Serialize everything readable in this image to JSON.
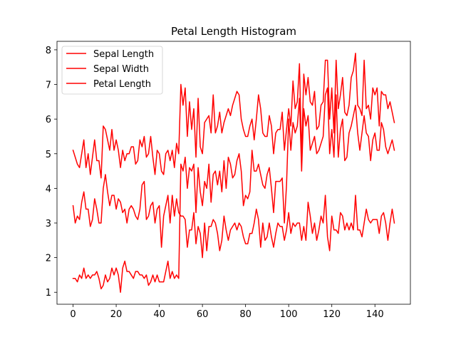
{
  "chart_data": {
    "type": "line",
    "title": "Petal Length Histogram",
    "xlabel": "",
    "ylabel": "",
    "xlim": [
      -7.45,
      156.45
    ],
    "ylim": [
      0.655,
      8.245
    ],
    "xticks": [
      0,
      20,
      40,
      60,
      80,
      100,
      120,
      140
    ],
    "yticks": [
      1,
      2,
      3,
      4,
      5,
      6,
      7,
      8
    ],
    "grid": false,
    "legend_position": "top-left",
    "series": [
      {
        "name": "Sepal Length",
        "color": "#ff0000",
        "values": [
          5.1,
          4.9,
          4.7,
          4.6,
          5.0,
          5.4,
          4.6,
          5.0,
          4.4,
          4.9,
          5.4,
          4.8,
          4.8,
          4.3,
          5.8,
          5.7,
          5.4,
          5.1,
          5.7,
          5.1,
          5.4,
          5.1,
          4.6,
          5.1,
          4.8,
          5.0,
          5.0,
          5.2,
          5.2,
          4.7,
          4.8,
          5.4,
          5.2,
          5.5,
          4.9,
          5.0,
          5.5,
          4.9,
          4.4,
          5.1,
          5.0,
          4.5,
          4.4,
          5.0,
          5.1,
          4.8,
          5.1,
          4.6,
          5.3,
          5.0,
          7.0,
          6.4,
          6.9,
          5.5,
          6.5,
          5.7,
          6.3,
          4.9,
          6.6,
          5.2,
          5.0,
          5.9,
          6.0,
          6.1,
          5.6,
          6.7,
          5.6,
          5.8,
          6.2,
          5.6,
          5.9,
          6.1,
          6.3,
          6.1,
          6.4,
          6.6,
          6.8,
          6.7,
          6.0,
          5.7,
          5.5,
          5.5,
          5.8,
          6.0,
          5.4,
          6.0,
          6.7,
          6.3,
          5.6,
          5.5,
          5.5,
          6.1,
          5.8,
          5.0,
          5.6,
          5.7,
          5.7,
          6.2,
          5.1,
          5.7,
          6.3,
          5.8,
          7.1,
          6.3,
          6.5,
          7.6,
          4.9,
          7.3,
          6.7,
          7.2,
          6.5,
          6.4,
          6.8,
          5.7,
          5.8,
          6.4,
          6.5,
          7.7,
          7.7,
          6.0,
          6.9,
          5.6,
          7.7,
          6.3,
          6.7,
          7.2,
          6.2,
          6.1,
          6.4,
          7.2,
          7.4,
          7.9,
          6.4,
          6.3,
          6.1,
          7.7,
          6.3,
          6.4,
          6.0,
          6.9,
          6.7,
          6.9,
          5.8,
          6.8,
          6.7,
          6.7,
          6.3,
          6.5,
          6.2,
          5.9
        ]
      },
      {
        "name": "Sepal Width",
        "color": "#ff0000",
        "values": [
          3.5,
          3.0,
          3.2,
          3.1,
          3.6,
          3.9,
          3.4,
          3.4,
          2.9,
          3.1,
          3.7,
          3.4,
          3.0,
          3.0,
          4.0,
          4.4,
          3.9,
          3.5,
          3.8,
          3.8,
          3.4,
          3.7,
          3.6,
          3.3,
          3.4,
          3.0,
          3.4,
          3.5,
          3.4,
          3.2,
          3.1,
          3.4,
          4.1,
          4.2,
          3.1,
          3.2,
          3.5,
          3.6,
          3.0,
          3.4,
          3.5,
          2.3,
          3.2,
          3.5,
          3.8,
          3.0,
          3.8,
          3.2,
          3.7,
          3.3,
          3.2,
          3.2,
          3.1,
          2.3,
          2.8,
          2.8,
          3.3,
          2.4,
          2.9,
          2.7,
          2.0,
          3.0,
          2.2,
          2.9,
          2.9,
          3.1,
          3.0,
          2.7,
          2.2,
          2.5,
          3.2,
          2.8,
          2.5,
          2.8,
          2.9,
          3.0,
          2.8,
          3.0,
          2.9,
          2.6,
          2.4,
          2.4,
          2.7,
          2.7,
          3.0,
          3.4,
          3.1,
          2.3,
          3.0,
          2.5,
          2.6,
          3.0,
          2.6,
          2.3,
          2.7,
          3.0,
          2.9,
          2.9,
          2.5,
          2.8,
          3.3,
          2.7,
          3.0,
          2.9,
          3.0,
          3.0,
          2.5,
          2.9,
          2.5,
          3.6,
          3.2,
          2.7,
          3.0,
          2.5,
          2.8,
          3.2,
          3.0,
          3.8,
          2.6,
          2.2,
          3.2,
          2.8,
          2.8,
          2.7,
          3.3,
          3.2,
          2.8,
          3.0,
          2.8,
          3.0,
          2.8,
          3.8,
          2.8,
          2.8,
          2.6,
          3.0,
          3.4,
          3.1,
          3.0,
          3.1,
          3.1,
          3.1,
          2.7,
          3.2,
          3.3,
          3.0,
          2.5,
          3.0,
          3.4,
          3.0
        ]
      },
      {
        "name": "Petal Length",
        "color": "#ff0000",
        "values": [
          1.4,
          1.4,
          1.3,
          1.5,
          1.4,
          1.7,
          1.4,
          1.5,
          1.4,
          1.5,
          1.5,
          1.6,
          1.4,
          1.1,
          1.2,
          1.5,
          1.3,
          1.4,
          1.7,
          1.5,
          1.7,
          1.5,
          1.0,
          1.7,
          1.9,
          1.6,
          1.6,
          1.5,
          1.4,
          1.6,
          1.6,
          1.5,
          1.5,
          1.4,
          1.5,
          1.2,
          1.3,
          1.5,
          1.3,
          1.5,
          1.3,
          1.3,
          1.3,
          1.6,
          1.9,
          1.4,
          1.6,
          1.4,
          1.5,
          1.4,
          4.7,
          4.5,
          4.9,
          4.0,
          4.6,
          4.5,
          4.7,
          3.3,
          4.6,
          3.9,
          3.5,
          4.2,
          4.0,
          4.7,
          3.6,
          4.4,
          4.5,
          4.1,
          4.5,
          3.9,
          4.8,
          4.0,
          4.9,
          4.7,
          4.3,
          4.4,
          4.8,
          5.0,
          4.5,
          3.5,
          3.8,
          3.7,
          3.9,
          5.1,
          4.5,
          4.5,
          4.7,
          4.4,
          4.1,
          4.0,
          4.4,
          4.6,
          4.0,
          3.3,
          4.2,
          4.2,
          4.2,
          4.3,
          3.0,
          4.1,
          6.0,
          5.1,
          5.9,
          5.6,
          5.8,
          6.6,
          4.5,
          6.3,
          5.8,
          6.1,
          5.1,
          5.3,
          5.5,
          5.0,
          5.1,
          5.3,
          5.5,
          6.7,
          6.9,
          5.0,
          5.7,
          4.9,
          6.7,
          4.9,
          5.7,
          6.0,
          4.8,
          4.9,
          5.6,
          5.8,
          6.1,
          6.4,
          5.6,
          5.1,
          5.6,
          6.1,
          5.6,
          5.5,
          4.8,
          5.4,
          5.6,
          5.1,
          5.1,
          5.9,
          5.7,
          5.2,
          5.0,
          5.2,
          5.4,
          5.1
        ]
      }
    ]
  }
}
